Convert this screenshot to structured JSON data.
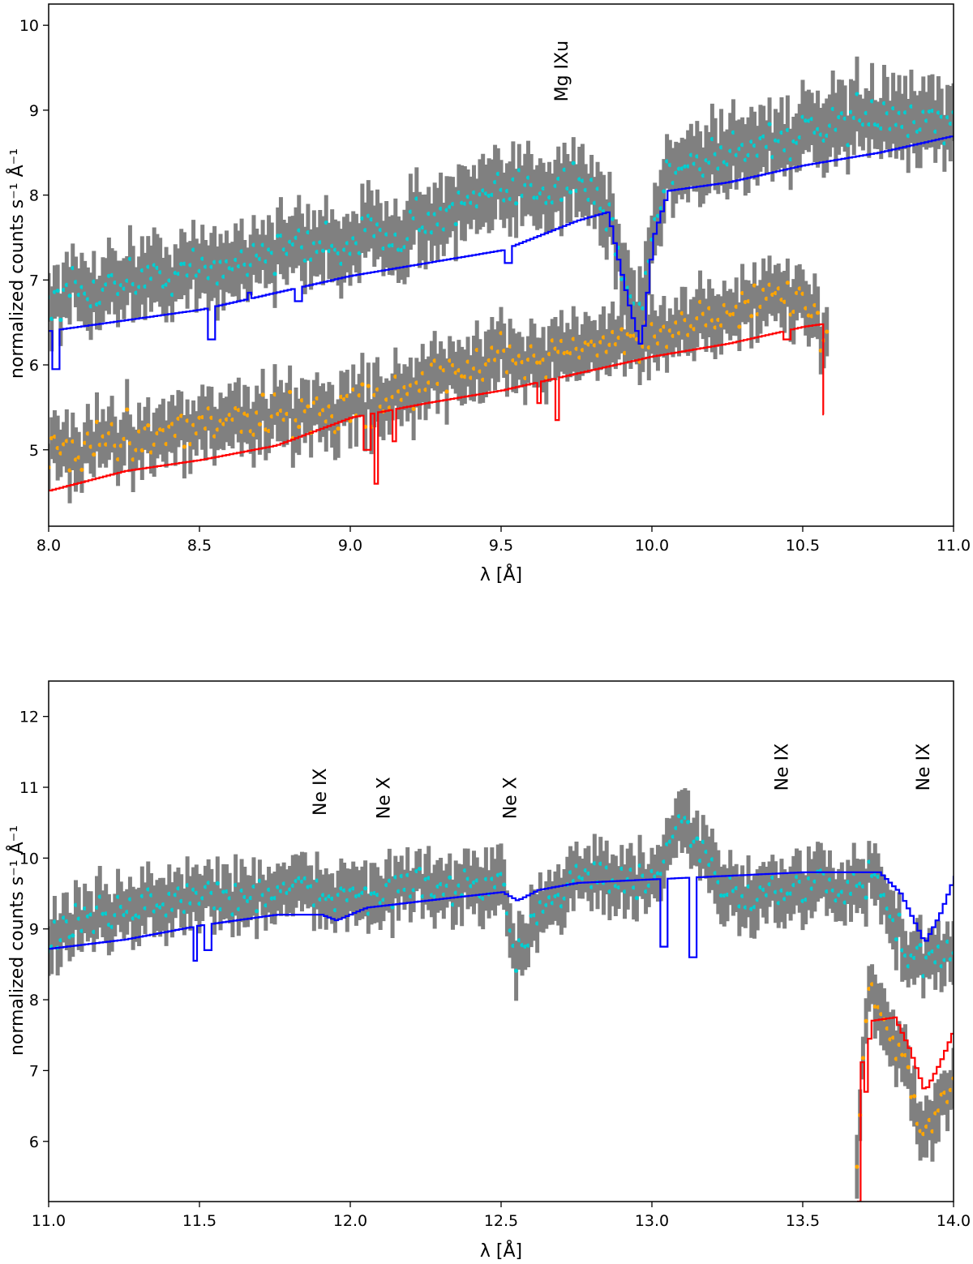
{
  "colors": {
    "errorbar": "#808080",
    "meg_points": "#00CED1",
    "heg_points": "#FFA500",
    "meg_model": "#0000FF",
    "heg_model": "#FF0000",
    "annot_black": "#000000",
    "annot_green": "#007000"
  },
  "chart_data": [
    {
      "type": "scatter",
      "xlabel": "λ [Å]",
      "ylabel": "normalized counts s⁻¹ Å⁻¹",
      "xlim": [
        8.0,
        11.0
      ],
      "ylim": [
        4.1,
        10.25
      ],
      "xticks": [
        "8.0",
        "8.5",
        "9.0",
        "9.5",
        "10.0",
        "10.5",
        "11.0"
      ],
      "yticks": [
        "5",
        "6",
        "7",
        "8",
        "9",
        "10"
      ],
      "grid": false,
      "annotations": [
        {
          "text": "Mg IXu",
          "x": 9.72,
          "y": 9.1,
          "color": "black",
          "rotation": 90
        }
      ],
      "series": [
        {
          "kind": "data-with-errorbars",
          "color": "cyan",
          "x_range": [
            8.0,
            11.0
          ],
          "points": [
            [
              8.0,
              6.7
            ],
            [
              8.25,
              7.0
            ],
            [
              8.5,
              7.1
            ],
            [
              8.75,
              7.35
            ],
            [
              9.0,
              7.45
            ],
            [
              9.25,
              7.7
            ],
            [
              9.5,
              8.0
            ],
            [
              9.75,
              8.2
            ],
            [
              9.85,
              7.8
            ],
            [
              9.95,
              6.5
            ],
            [
              10.05,
              8.3
            ],
            [
              10.25,
              8.55
            ],
            [
              10.5,
              8.7
            ],
            [
              10.75,
              8.95
            ],
            [
              11.0,
              8.8
            ]
          ],
          "errorbar_halfwidth": 0.35
        },
        {
          "kind": "model-step",
          "color": "blue",
          "points": [
            [
              8.0,
              6.4
            ],
            [
              8.5,
              6.65
            ],
            [
              8.75,
              6.85
            ],
            [
              9.0,
              7.05
            ],
            [
              9.25,
              7.2
            ],
            [
              9.5,
              7.35
            ],
            [
              9.75,
              7.7
            ],
            [
              9.85,
              7.8
            ],
            [
              9.88,
              7.3
            ],
            [
              9.92,
              6.7
            ],
            [
              9.96,
              6.2
            ],
            [
              10.0,
              7.5
            ],
            [
              10.05,
              8.05
            ],
            [
              10.25,
              8.15
            ],
            [
              10.5,
              8.35
            ],
            [
              10.75,
              8.5
            ],
            [
              11.0,
              8.7
            ]
          ],
          "dips": [
            [
              8.02,
              5.95
            ],
            [
              8.53,
              6.3
            ],
            [
              8.66,
              6.85
            ],
            [
              8.82,
              6.75
            ],
            [
              9.52,
              7.2
            ]
          ]
        },
        {
          "kind": "data-with-errorbars",
          "color": "orange",
          "x_range": [
            8.0,
            10.58
          ],
          "points": [
            [
              8.0,
              4.95
            ],
            [
              8.25,
              5.15
            ],
            [
              8.5,
              5.3
            ],
            [
              8.75,
              5.4
            ],
            [
              9.0,
              5.5
            ],
            [
              9.25,
              5.8
            ],
            [
              9.5,
              6.05
            ],
            [
              9.75,
              6.2
            ],
            [
              10.0,
              6.35
            ],
            [
              10.25,
              6.65
            ],
            [
              10.5,
              6.8
            ],
            [
              10.58,
              6.3
            ]
          ],
          "errorbar_halfwidth": 0.3
        },
        {
          "kind": "model-step",
          "color": "red",
          "points": [
            [
              8.0,
              4.52
            ],
            [
              8.25,
              4.75
            ],
            [
              8.5,
              4.88
            ],
            [
              8.75,
              5.05
            ],
            [
              9.0,
              5.38
            ],
            [
              9.25,
              5.55
            ],
            [
              9.5,
              5.7
            ],
            [
              9.75,
              5.9
            ],
            [
              10.0,
              6.1
            ],
            [
              10.25,
              6.25
            ],
            [
              10.5,
              6.45
            ],
            [
              10.56,
              6.48
            ],
            [
              10.57,
              5.15
            ]
          ],
          "dips": [
            [
              9.05,
              5.0
            ],
            [
              9.08,
              4.6
            ],
            [
              9.14,
              5.1
            ],
            [
              9.62,
              5.55
            ],
            [
              9.68,
              5.35
            ],
            [
              10.44,
              6.3
            ]
          ]
        }
      ]
    },
    {
      "type": "scatter",
      "xlabel": "λ [Å]",
      "ylabel": "normalized counts s⁻¹ Å⁻¹",
      "xlim": [
        11.0,
        14.0
      ],
      "ylim": [
        5.15,
        12.5
      ],
      "xticks": [
        "11.0",
        "11.5",
        "12.0",
        "12.5",
        "13.0",
        "13.5",
        "14.0"
      ],
      "yticks": [
        "6",
        "7",
        "8",
        "9",
        "10",
        "11",
        "12"
      ],
      "grid": false,
      "annotations": [
        {
          "text": "Ne IX",
          "x": 11.92,
          "y": 10.6,
          "color": "black",
          "rotation": 90
        },
        {
          "text": "Ne X",
          "x": 12.13,
          "y": 10.55,
          "color": "green",
          "rotation": 90
        },
        {
          "text": "Ne X",
          "x": 12.55,
          "y": 10.55,
          "color": "black",
          "rotation": 90
        },
        {
          "text": "Ne IX",
          "x": 13.45,
          "y": 10.95,
          "color": "green",
          "rotation": 90
        },
        {
          "text": "Ne IX",
          "x": 13.92,
          "y": 10.95,
          "color": "black",
          "rotation": 90
        }
      ],
      "series": [
        {
          "kind": "data-with-errorbars",
          "color": "cyan",
          "x_range": [
            11.0,
            14.0
          ],
          "points": [
            [
              11.0,
              8.9
            ],
            [
              11.25,
              9.3
            ],
            [
              11.5,
              9.45
            ],
            [
              11.75,
              9.5
            ],
            [
              12.0,
              9.5
            ],
            [
              12.25,
              9.55
            ],
            [
              12.5,
              9.6
            ],
            [
              12.55,
              8.5
            ],
            [
              12.6,
              9.2
            ],
            [
              12.75,
              9.8
            ],
            [
              13.0,
              9.6
            ],
            [
              13.1,
              10.5
            ],
            [
              13.25,
              9.5
            ],
            [
              13.5,
              9.6
            ],
            [
              13.75,
              9.6
            ],
            [
              13.85,
              8.6
            ],
            [
              14.0,
              8.6
            ]
          ],
          "errorbar_halfwidth": 0.35
        },
        {
          "kind": "model-step",
          "color": "blue",
          "points": [
            [
              11.0,
              8.72
            ],
            [
              11.25,
              8.85
            ],
            [
              11.5,
              9.05
            ],
            [
              11.75,
              9.2
            ],
            [
              11.9,
              9.2
            ],
            [
              11.95,
              9.12
            ],
            [
              12.05,
              9.3
            ],
            [
              12.25,
              9.4
            ],
            [
              12.5,
              9.52
            ],
            [
              12.55,
              9.4
            ],
            [
              12.62,
              9.55
            ],
            [
              12.75,
              9.65
            ],
            [
              13.0,
              9.7
            ],
            [
              13.25,
              9.75
            ],
            [
              13.5,
              9.8
            ],
            [
              13.75,
              9.8
            ],
            [
              13.82,
              9.5
            ],
            [
              13.9,
              8.8
            ],
            [
              13.95,
              9.2
            ],
            [
              14.0,
              9.75
            ]
          ],
          "dips": [
            [
              11.48,
              8.55
            ],
            [
              11.52,
              8.7
            ],
            [
              13.03,
              8.75
            ],
            [
              13.13,
              8.6
            ]
          ]
        },
        {
          "kind": "data-with-errorbars",
          "color": "orange",
          "x_range": [
            13.68,
            14.0
          ],
          "points": [
            [
              13.68,
              5.7
            ],
            [
              13.72,
              8.3
            ],
            [
              13.76,
              7.8
            ],
            [
              13.8,
              7.4
            ],
            [
              13.85,
              7.0
            ],
            [
              13.9,
              6.0
            ],
            [
              13.95,
              6.4
            ],
            [
              14.0,
              6.9
            ]
          ],
          "errorbar_halfwidth": 0.35
        },
        {
          "kind": "model-step",
          "color": "red",
          "points": [
            [
              13.68,
              5.15
            ],
            [
              13.685,
              7.7
            ],
            [
              13.7,
              6.45
            ],
            [
              13.72,
              7.7
            ],
            [
              13.8,
              7.75
            ],
            [
              13.85,
              7.3
            ],
            [
              13.9,
              6.7
            ],
            [
              13.95,
              7.1
            ],
            [
              14.0,
              7.6
            ]
          ],
          "dips": []
        }
      ]
    }
  ]
}
